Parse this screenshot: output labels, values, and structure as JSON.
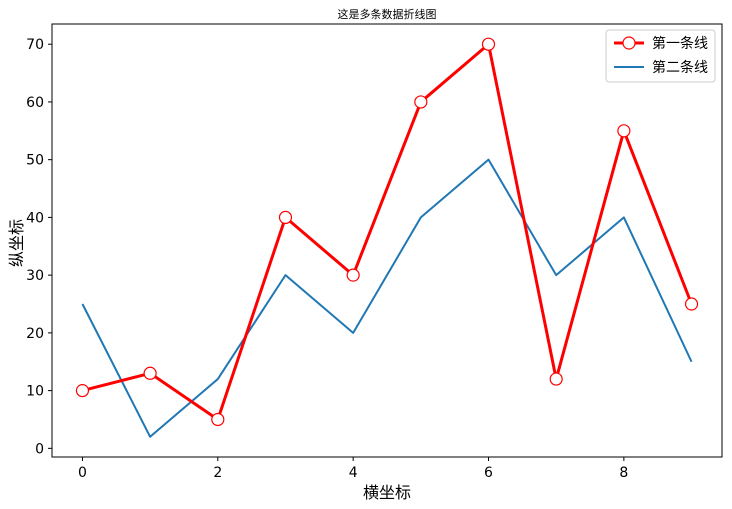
{
  "chart_data": {
    "type": "line",
    "title": "这是多条数据折线图",
    "xlabel": "横坐标",
    "ylabel": "纵坐标",
    "x": [
      0,
      1,
      2,
      3,
      4,
      5,
      6,
      7,
      8,
      9
    ],
    "xlim": [
      -0.45,
      9.45
    ],
    "ylim": [
      -1.5,
      73.5
    ],
    "xticks": [
      0,
      2,
      4,
      6,
      8
    ],
    "yticks": [
      0,
      10,
      20,
      30,
      40,
      50,
      60,
      70
    ],
    "grid": false,
    "legend_position": "top-right",
    "series": [
      {
        "name": "第一条线",
        "values": [
          10,
          13,
          5,
          40,
          30,
          60,
          70,
          12,
          55,
          25
        ],
        "color": "#ff0000",
        "marker": "circle"
      },
      {
        "name": "第二条线",
        "values": [
          25,
          2,
          12,
          30,
          20,
          40,
          50,
          30,
          40,
          15
        ],
        "color": "#1f77b4",
        "marker": "none"
      }
    ]
  }
}
